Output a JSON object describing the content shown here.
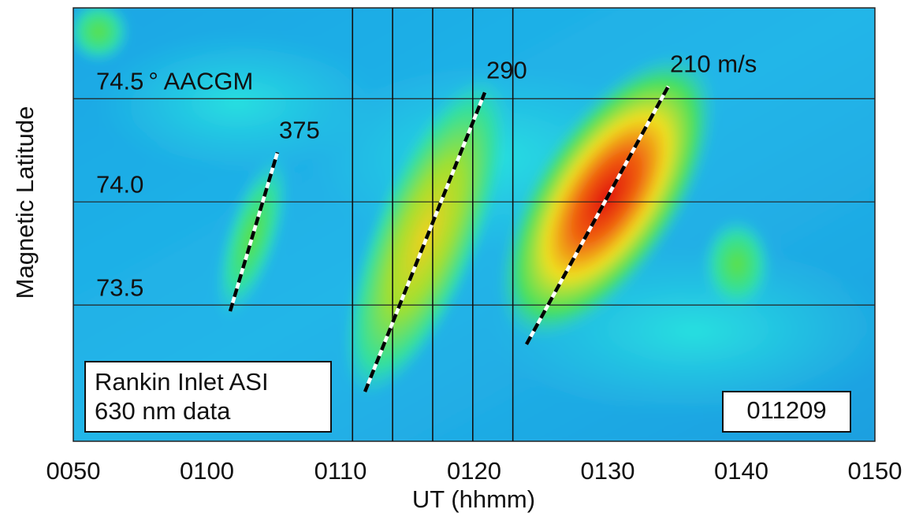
{
  "chart_data": {
    "type": "keogram",
    "xlabel": "UT (hhmm)",
    "ylabel": "Magnetic Latitude",
    "coordinate_label": "° AACGM",
    "xlim": [
      50,
      110
    ],
    "ylim": [
      72.84,
      74.94
    ],
    "xticks": [
      {
        "value": 50,
        "label": "0050"
      },
      {
        "value": 60,
        "label": "0100"
      },
      {
        "value": 70,
        "label": "0110"
      },
      {
        "value": 80,
        "label": "0120"
      },
      {
        "value": 90,
        "label": "0130"
      },
      {
        "value": 100,
        "label": "0140"
      },
      {
        "value": 110,
        "label": "0150"
      }
    ],
    "yticks": [
      73.5,
      {
        "value": 74,
        "label": "74.0"
      },
      74.5
    ],
    "grid": true,
    "vlines": [
      70.9,
      73.9,
      76.9,
      79.9,
      82.9
    ],
    "speed_lines": [
      {
        "label": "375",
        "x": [
          61.74,
          65.28
        ],
        "y": [
          73.47,
          74.24
        ]
      },
      {
        "label": "290",
        "x": [
          71.83,
          80.8
        ],
        "y": [
          73.08,
          74.53
        ]
      },
      {
        "label": "210 m/s",
        "x": [
          83.92,
          94.54
        ],
        "y": [
          73.31,
          74.56
        ]
      }
    ],
    "instrument": [
      "Rankin Inlet ASI",
      "630 nm data"
    ],
    "date_code": "011209"
  }
}
